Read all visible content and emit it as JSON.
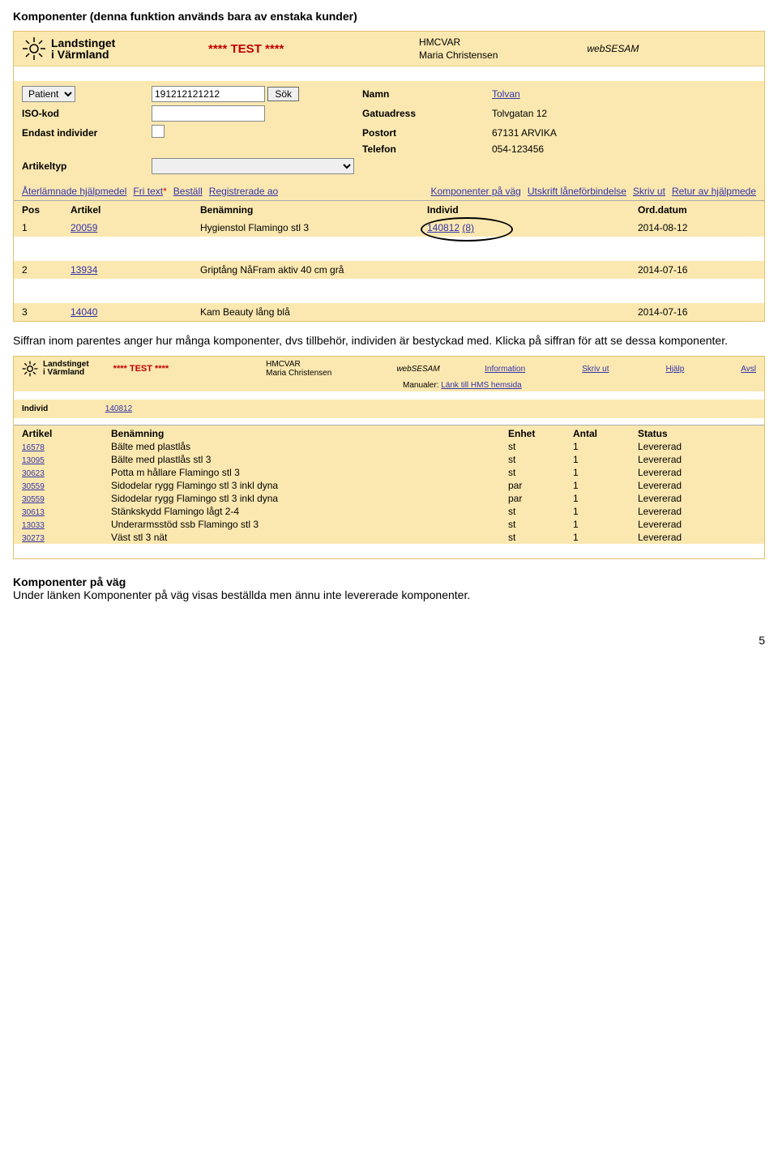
{
  "heading": "Komponenter (denna funktion används bara av enstaka kunder)",
  "header": {
    "logo_line1": "Landstinget",
    "logo_line2": "i Värmland",
    "test": "**** TEST ****",
    "code": "HMCVAR",
    "user": "Maria Christensen",
    "system": "webSESAM"
  },
  "form": {
    "search_type_label": "Patient",
    "search_value": "191212121212",
    "sok": "Sök",
    "namn_lbl": "Namn",
    "namn_val": "Tolvan",
    "iso_lbl": "ISO-kod",
    "gatu_lbl": "Gatuadress",
    "gatu_val": "Tolvgatan 12",
    "endast_lbl": "Endast individer",
    "postort_lbl": "Postort",
    "postort_val": "67131 ARVIKA",
    "tele_lbl": "Telefon",
    "tele_val": "054-123456",
    "arttyp_lbl": "Artikeltyp"
  },
  "links": {
    "l1": "Återlämnade hjälpmedel",
    "l2": "Fri text",
    "l3": "Beställ",
    "l4": "Registrerade ao",
    "r1": "Komponenter på väg",
    "r2": "Utskrift låneförbindelse",
    "r3": "Skriv ut",
    "r4": "Retur av hjälpmede"
  },
  "cols": {
    "pos": "Pos",
    "artikel": "Artikel",
    "benamning": "Benämning",
    "individ": "Individ",
    "ord": "Ord.datum"
  },
  "rows": [
    {
      "pos": "1",
      "art": "20059",
      "ben": "Hygienstol Flamingo stl 3",
      "ind": "140812",
      "indn": "(8)",
      "ord": "2014-08-12"
    },
    {
      "pos": "2",
      "art": "13934",
      "ben": "Griptång NåFram aktiv 40 cm grå",
      "ind": "",
      "indn": "",
      "ord": "2014-07-16"
    },
    {
      "pos": "3",
      "art": "14040",
      "ben": "Kam Beauty lång blå",
      "ind": "",
      "indn": "",
      "ord": "2014-07-16"
    }
  ],
  "para": "Siffran inom parentes anger hur många komponenter, dvs tillbehör, individen är bestyckad med. Klicka på siffran för att se dessa komponenter.",
  "hdr2": {
    "info": "Information",
    "skriv": "Skriv ut",
    "hjalp": "Hjälp",
    "avsl": "Avsl",
    "manualer": "Manualer:",
    "manlink": "Länk till HMS hemsida"
  },
  "individ_lbl": "Individ",
  "individ_val": "140812",
  "cols2": {
    "artikel": "Artikel",
    "benamning": "Benämning",
    "enhet": "Enhet",
    "antal": "Antal",
    "status": "Status"
  },
  "rows2": [
    {
      "a": "16578",
      "b": "Bälte med plastlås",
      "e": "st",
      "n": "1",
      "s": "Levererad"
    },
    {
      "a": "13095",
      "b": "Bälte med plastlås stl 3",
      "e": "st",
      "n": "1",
      "s": "Levererad"
    },
    {
      "a": "30623",
      "b": "Potta m hållare Flamingo stl 3",
      "e": "st",
      "n": "1",
      "s": "Levererad"
    },
    {
      "a": "30559",
      "b": "Sidodelar rygg Flamingo stl 3 inkl dyna",
      "e": "par",
      "n": "1",
      "s": "Levererad"
    },
    {
      "a": "30559",
      "b": "Sidodelar rygg Flamingo stl 3 inkl dyna",
      "e": "par",
      "n": "1",
      "s": "Levererad"
    },
    {
      "a": "30613",
      "b": "Stänkskydd Flamingo lågt 2-4",
      "e": "st",
      "n": "1",
      "s": "Levererad"
    },
    {
      "a": "13033",
      "b": "Underarmsstöd ssb Flamingo stl 3",
      "e": "st",
      "n": "1",
      "s": "Levererad"
    },
    {
      "a": "30273",
      "b": "Väst stl 3 nät",
      "e": "st",
      "n": "1",
      "s": "Levererad"
    }
  ],
  "sub_head": "Komponenter på väg",
  "sub_text": "Under länken Komponenter på väg visas beställda men ännu inte levererade komponenter.",
  "page": "5"
}
